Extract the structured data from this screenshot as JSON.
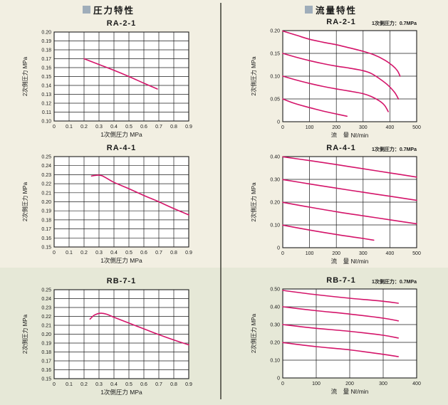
{
  "sections": {
    "pressure": {
      "label": "圧力特性"
    },
    "flow": {
      "label": "流量特性"
    }
  },
  "colors": {
    "page_background": "#f2efe2",
    "bottom_band_background": "#e6e8d7",
    "plot_background": "#ffffff",
    "grid_line": "#1c1c1c",
    "curve": "#d4156a",
    "header_marker": "#9fadba",
    "divider": "#69695e",
    "text": "#1a1a1a"
  },
  "chart_data": [
    {
      "id": "pressure-RA-2-1",
      "type": "line",
      "title": "RA-2-1",
      "xlabel": "1次側圧力 MPa",
      "ylabel": "2次側圧力 MPa",
      "xlim": [
        0,
        0.9
      ],
      "ylim": [
        0.1,
        0.2
      ],
      "grid": true,
      "xticks": {
        "values": [
          0,
          0.1,
          0.2,
          0.3,
          0.4,
          0.5,
          0.6,
          0.7,
          0.8,
          0.9
        ],
        "labels": [
          "0",
          "0.1",
          "0.2",
          "0.3",
          "0.4",
          "0.5",
          "0.6",
          "0.7",
          "0.8",
          "0.9"
        ]
      },
      "yticks": {
        "values": [
          0.1,
          0.11,
          0.12,
          0.13,
          0.14,
          0.15,
          0.16,
          0.17,
          0.18,
          0.19,
          0.2
        ],
        "labels": [
          "0.10",
          "0.11",
          "0.12",
          "0.13",
          "0.14",
          "0.15",
          "0.16",
          "0.17",
          "0.18",
          "0.19",
          "0.20"
        ]
      },
      "series": [
        {
          "points": [
            [
              0.2,
              0.17
            ],
            [
              0.3,
              0.1635
            ],
            [
              0.4,
              0.157
            ],
            [
              0.5,
              0.15
            ],
            [
              0.6,
              0.1425
            ],
            [
              0.69,
              0.136
            ]
          ]
        }
      ]
    },
    {
      "id": "flow-RA-2-1",
      "type": "line",
      "title": "RA-2-1",
      "annotation": "1次側圧力：0.7MPa",
      "xlabel": "流　量 Nℓ/min",
      "ylabel": "2次側圧力 MPa",
      "xlim": [
        0,
        500
      ],
      "ylim": [
        0,
        0.2
      ],
      "grid": true,
      "xticks": {
        "values": [
          0,
          100,
          200,
          300,
          400,
          500
        ],
        "labels": [
          "0",
          "100",
          "200",
          "300",
          "400",
          "500"
        ]
      },
      "yticks": {
        "values": [
          0,
          0.05,
          0.1,
          0.15,
          0.2
        ],
        "labels": [
          "0",
          "0.05",
          "0.10",
          "0.15",
          "0.20"
        ]
      },
      "series": [
        {
          "points": [
            [
              0,
              0.199
            ],
            [
              50,
              0.19
            ],
            [
              100,
              0.181
            ],
            [
              150,
              0.1745
            ],
            [
              200,
              0.169
            ],
            [
              250,
              0.162
            ],
            [
              300,
              0.1545
            ],
            [
              340,
              0.147
            ],
            [
              380,
              0.1355
            ],
            [
              410,
              0.123
            ],
            [
              428,
              0.112
            ],
            [
              438,
              0.1
            ]
          ]
        },
        {
          "points": [
            [
              0,
              0.15
            ],
            [
              50,
              0.1415
            ],
            [
              100,
              0.134
            ],
            [
              150,
              0.1275
            ],
            [
              200,
              0.122
            ],
            [
              250,
              0.1175
            ],
            [
              300,
              0.112
            ],
            [
              330,
              0.106
            ],
            [
              365,
              0.093
            ],
            [
              395,
              0.079
            ],
            [
              418,
              0.064
            ],
            [
              432,
              0.05
            ]
          ]
        },
        {
          "points": [
            [
              0,
              0.1
            ],
            [
              50,
              0.0915
            ],
            [
              100,
              0.084
            ],
            [
              150,
              0.0775
            ],
            [
              200,
              0.072
            ],
            [
              250,
              0.067
            ],
            [
              300,
              0.0615
            ],
            [
              330,
              0.0555
            ],
            [
              360,
              0.046
            ],
            [
              380,
              0.036
            ],
            [
              394,
              0.022
            ]
          ]
        },
        {
          "points": [
            [
              0,
              0.05
            ],
            [
              40,
              0.041
            ],
            [
              80,
              0.034
            ],
            [
              120,
              0.028
            ],
            [
              160,
              0.022
            ],
            [
              200,
              0.017
            ],
            [
              240,
              0.012
            ]
          ]
        }
      ]
    },
    {
      "id": "pressure-RA-4-1",
      "type": "line",
      "title": "RA-4-1",
      "xlabel": "1次側圧力 MPa",
      "ylabel": "2次側圧力 MPa",
      "xlim": [
        0,
        0.9
      ],
      "ylim": [
        0.15,
        0.25
      ],
      "grid": true,
      "xticks": {
        "values": [
          0,
          0.1,
          0.2,
          0.3,
          0.4,
          0.5,
          0.6,
          0.7,
          0.8,
          0.9
        ],
        "labels": [
          "0",
          "0.1",
          "0.2",
          "0.3",
          "0.4",
          "0.5",
          "0.6",
          "0.7",
          "0.8",
          "0.9"
        ]
      },
      "yticks": {
        "values": [
          0.15,
          0.16,
          0.17,
          0.18,
          0.19,
          0.2,
          0.21,
          0.22,
          0.23,
          0.24,
          0.25
        ],
        "labels": [
          "0.15",
          "0.16",
          "0.17",
          "0.18",
          "0.19",
          "0.20",
          "0.21",
          "0.22",
          "0.23",
          "0.24",
          "0.25"
        ]
      },
      "series": [
        {
          "points": [
            [
              0.25,
              0.2285
            ],
            [
              0.28,
              0.2293
            ],
            [
              0.32,
              0.2288
            ],
            [
              0.4,
              0.2215
            ],
            [
              0.5,
              0.2145
            ],
            [
              0.6,
              0.207
            ],
            [
              0.7,
              0.2
            ],
            [
              0.8,
              0.1925
            ],
            [
              0.9,
              0.1855
            ]
          ]
        }
      ]
    },
    {
      "id": "flow-RA-4-1",
      "type": "line",
      "title": "RA-4-1",
      "annotation": "1次側圧力：0.7MPa",
      "xlabel": "流　量 Nℓ/min",
      "ylabel": "2次側圧力 MPa",
      "xlim": [
        0,
        500
      ],
      "ylim": [
        0,
        0.4
      ],
      "grid": true,
      "xticks": {
        "values": [
          0,
          100,
          200,
          300,
          400,
          500
        ],
        "labels": [
          "0",
          "100",
          "200",
          "300",
          "400",
          "500"
        ]
      },
      "yticks": {
        "values": [
          0,
          0.1,
          0.2,
          0.3,
          0.4
        ],
        "labels": [
          "0",
          "0.10",
          "0.20",
          "0.30",
          "0.40"
        ]
      },
      "series": [
        {
          "points": [
            [
              0,
              0.399
            ],
            [
              100,
              0.3825
            ],
            [
              200,
              0.365
            ],
            [
              300,
              0.3465
            ],
            [
              400,
              0.3285
            ],
            [
              500,
              0.31
            ]
          ]
        },
        {
          "points": [
            [
              0,
              0.299
            ],
            [
              100,
              0.28
            ],
            [
              200,
              0.2615
            ],
            [
              300,
              0.2435
            ],
            [
              400,
              0.226
            ],
            [
              500,
              0.208
            ]
          ]
        },
        {
          "points": [
            [
              0,
              0.199
            ],
            [
              100,
              0.178
            ],
            [
              200,
              0.158
            ],
            [
              300,
              0.14
            ],
            [
              400,
              0.1225
            ],
            [
              500,
              0.105
            ]
          ]
        },
        {
          "points": [
            [
              0,
              0.099
            ],
            [
              100,
              0.0775
            ],
            [
              200,
              0.058
            ],
            [
              300,
              0.0405
            ],
            [
              340,
              0.033
            ]
          ]
        }
      ]
    },
    {
      "id": "pressure-RB-7-1",
      "type": "line",
      "title": "RB-7-1",
      "xlabel": "1次側圧力 MPa",
      "ylabel": "2次側圧力 MPa",
      "xlim": [
        0,
        0.9
      ],
      "ylim": [
        0.15,
        0.25
      ],
      "grid": true,
      "xticks": {
        "values": [
          0,
          0.1,
          0.2,
          0.3,
          0.4,
          0.5,
          0.6,
          0.7,
          0.8,
          0.9
        ],
        "labels": [
          "0",
          "0.1",
          "0.2",
          "0.3",
          "0.4",
          "0.5",
          "0.6",
          "0.7",
          "0.8",
          "0.9"
        ]
      },
      "yticks": {
        "values": [
          0.15,
          0.16,
          0.17,
          0.18,
          0.19,
          0.2,
          0.21,
          0.22,
          0.23,
          0.24,
          0.25
        ],
        "labels": [
          "0.15",
          "0.16",
          "0.17",
          "0.18",
          "0.19",
          "0.20",
          "0.21",
          "0.22",
          "0.23",
          "0.24",
          "0.25"
        ]
      },
      "series": [
        {
          "points": [
            [
              0.24,
              0.217
            ],
            [
              0.27,
              0.2215
            ],
            [
              0.31,
              0.2235
            ],
            [
              0.35,
              0.2225
            ],
            [
              0.4,
              0.219
            ],
            [
              0.5,
              0.2125
            ],
            [
              0.6,
              0.206
            ],
            [
              0.7,
              0.1995
            ],
            [
              0.8,
              0.1935
            ],
            [
              0.9,
              0.188
            ]
          ]
        }
      ]
    },
    {
      "id": "flow-RB-7-1",
      "type": "line",
      "title": "RB-7-1",
      "annotation": "1次側圧力：0.7MPa",
      "xlabel": "流　量 Nℓ/min",
      "ylabel": "2次側圧力 MPa",
      "xlim": [
        0,
        400
      ],
      "ylim": [
        0,
        0.5
      ],
      "grid": true,
      "xticks": {
        "values": [
          0,
          100,
          200,
          300,
          400
        ],
        "labels": [
          "0",
          "100",
          "200",
          "300",
          "400"
        ]
      },
      "yticks": {
        "values": [
          0,
          0.1,
          0.2,
          0.3,
          0.4,
          0.5
        ],
        "labels": [
          "0",
          "0.10",
          "0.20",
          "0.30",
          "0.40",
          "0.50"
        ]
      },
      "series": [
        {
          "points": [
            [
              0,
              0.492
            ],
            [
              100,
              0.468
            ],
            [
              200,
              0.448
            ],
            [
              300,
              0.431
            ],
            [
              345,
              0.42
            ]
          ]
        },
        {
          "points": [
            [
              0,
              0.4
            ],
            [
              100,
              0.378
            ],
            [
              200,
              0.359
            ],
            [
              300,
              0.336
            ],
            [
              345,
              0.321
            ]
          ]
        },
        {
          "points": [
            [
              0,
              0.3
            ],
            [
              100,
              0.279
            ],
            [
              200,
              0.262
            ],
            [
              300,
              0.24
            ],
            [
              345,
              0.2245
            ]
          ]
        },
        {
          "points": [
            [
              0,
              0.199
            ],
            [
              100,
              0.176
            ],
            [
              200,
              0.158
            ],
            [
              300,
              0.133
            ],
            [
              345,
              0.12
            ]
          ]
        }
      ]
    }
  ]
}
